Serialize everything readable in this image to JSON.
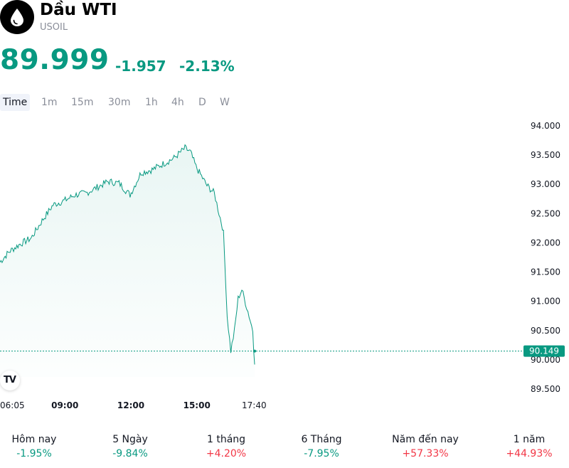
{
  "instrument": {
    "name": "Dầu WTI",
    "symbol": "USOIL",
    "icon": "oil-drop-icon"
  },
  "quote": {
    "price": "89.999",
    "change": "-1.957",
    "change_percent": "-2.13%"
  },
  "timeframes": [
    "Time",
    "1m",
    "15m",
    "30m",
    "1h",
    "4h",
    "D",
    "W"
  ],
  "active_timeframe": "Time",
  "colors": {
    "line": "#089981",
    "negative": "#089981",
    "positive": "#f23645"
  },
  "chart_data": {
    "type": "area",
    "y_ticks": [
      "94.000",
      "93.500",
      "93.000",
      "92.500",
      "92.000",
      "91.500",
      "91.000",
      "90.500",
      "90.000",
      "89.500"
    ],
    "ylim": [
      89.5,
      94.0
    ],
    "x_ticks": [
      "06:05",
      "09:00",
      "12:00",
      "15:00",
      "17:40"
    ],
    "x_ticks_bold": [
      false,
      true,
      true,
      true,
      false
    ],
    "current_price": 90.149,
    "current_price_label": "90.149",
    "x": [
      "06:05",
      "06:30",
      "07:00",
      "07:30",
      "08:00",
      "08:30",
      "09:00",
      "09:30",
      "10:00",
      "10:30",
      "11:00",
      "11:30",
      "12:00",
      "12:30",
      "13:00",
      "13:30",
      "14:00",
      "14:30",
      "14:45",
      "15:00",
      "15:30",
      "15:50",
      "16:00",
      "16:15",
      "16:25",
      "16:35",
      "16:45",
      "16:55",
      "17:05",
      "17:15",
      "17:25",
      "17:35",
      "17:40"
    ],
    "values": [
      91.67,
      91.85,
      91.98,
      92.08,
      92.38,
      92.65,
      92.72,
      92.82,
      92.85,
      92.95,
      93.05,
      93.02,
      92.82,
      93.2,
      93.25,
      93.35,
      93.45,
      93.62,
      93.55,
      93.3,
      92.98,
      92.85,
      92.58,
      92.2,
      90.75,
      90.15,
      90.5,
      91.05,
      91.2,
      90.98,
      90.75,
      90.5,
      89.92
    ]
  },
  "performance": [
    {
      "label": "Hôm nay",
      "value": "-1.95%",
      "direction": "down"
    },
    {
      "label": "5 Ngày",
      "value": "-9.84%",
      "direction": "down"
    },
    {
      "label": "1 tháng",
      "value": "+4.20%",
      "direction": "up"
    },
    {
      "label": "6 Tháng",
      "value": "-7.95%",
      "direction": "down"
    },
    {
      "label": "Năm đến nay",
      "value": "+57.33%",
      "direction": "up"
    },
    {
      "label": "1 năm",
      "value": "+44.93%",
      "direction": "up"
    }
  ]
}
